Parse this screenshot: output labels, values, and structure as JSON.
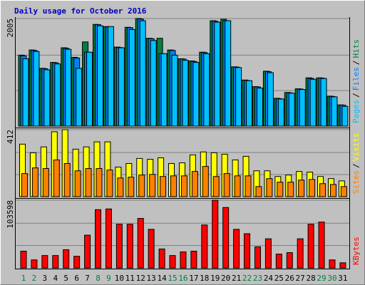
{
  "chart_data": {
    "type": "bar",
    "title": "Daily usage for October 2016",
    "categories": [
      "1",
      "2",
      "3",
      "4",
      "5",
      "6",
      "7",
      "8",
      "9",
      "10",
      "11",
      "12",
      "13",
      "14",
      "15",
      "16",
      "17",
      "18",
      "19",
      "20",
      "21",
      "22",
      "23",
      "24",
      "25",
      "26",
      "27",
      "28",
      "29",
      "30",
      "31"
    ],
    "category_colors": [
      "#008040",
      "#008040",
      "#000000",
      "#000000",
      "#000000",
      "#000000",
      "#000000",
      "#008040",
      "#008040",
      "#000000",
      "#000000",
      "#000000",
      "#000000",
      "#000000",
      "#008040",
      "#008040",
      "#000000",
      "#000000",
      "#000000",
      "#000000",
      "#000000",
      "#008040",
      "#008040",
      "#000000",
      "#000000",
      "#000000",
      "#000000",
      "#000000",
      "#008040",
      "#008040",
      "#000000"
    ],
    "separator": "/",
    "panels": [
      {
        "ylim": [
          0,
          2005
        ],
        "yticks": [
          2005
        ],
        "series": [
          {
            "name": "Hits",
            "color": "#008040",
            "values": [
              1323,
              1419,
              1077,
              1187,
              1460,
              1282,
              1569,
              1896,
              1855,
              1473,
              1842,
              2005,
              1637,
              1637,
              1419,
              1255,
              1214,
              1378,
              1964,
              1991,
              1105,
              859,
              736,
              1023,
              518,
              627,
              696,
              900,
              900,
              559,
              396
            ]
          },
          {
            "name": "Files",
            "color": "#0080ff",
            "values": [
              1310,
              1410,
              1070,
              1180,
              1450,
              1270,
              1378,
              1890,
              1850,
              1465,
              1835,
              1995,
              1630,
              1350,
              1410,
              1250,
              1205,
              1370,
              1955,
              1964,
              1100,
              850,
              730,
              1015,
              512,
              620,
              690,
              890,
              895,
              552,
              390
            ]
          },
          {
            "name": "Pages",
            "color": "#00c0ff",
            "values": [
              1255,
              1391,
              1050,
              1159,
              1432,
              1077,
              1378,
              1869,
              1855,
              1460,
              1800,
              1964,
              1596,
              1350,
              1323,
              1228,
              1187,
              1350,
              1937,
              1964,
              1091,
              846,
              709,
              996,
              505,
              614,
              682,
              873,
              887,
              546,
              368
            ]
          }
        ],
        "label_order": [
          2,
          1,
          0
        ]
      },
      {
        "ylim": [
          0,
          412
        ],
        "yticks": [
          412
        ],
        "series": [
          {
            "name": "Visits",
            "color": "#ffff00",
            "values": [
              323,
              270,
              306,
              399,
              412,
              292,
              306,
              337,
              337,
              182,
              204,
              235,
              230,
              239,
              204,
              208,
              257,
              275,
              270,
              261,
              226,
              248,
              159,
              159,
              124,
              133,
              155,
              151,
              124,
              111,
              97
            ]
          },
          {
            "name": "Sites",
            "color": "#ff8000",
            "values": [
              142,
              177,
              173,
              226,
              204,
              159,
              173,
              173,
              164,
              115,
              120,
              133,
              137,
              124,
              128,
              128,
              155,
              186,
              124,
              142,
              128,
              128,
              62,
              111,
              89,
              89,
              102,
              106,
              80,
              75,
              62
            ]
          }
        ],
        "label_order": [
          1,
          0
        ]
      },
      {
        "ylim": [
          0,
          103598
        ],
        "yticks": [
          103598
        ],
        "series": [
          {
            "name": "KBytes",
            "color": "#ff0000",
            "values": [
              25622,
              12254,
              18938,
              18938,
              27850,
              17824,
              50130,
              89120,
              90234,
              66840,
              66840,
              75752,
              59042,
              28964,
              18938,
              24508,
              25622,
              65726,
              103598,
              92462,
              59042,
              52358,
              32306,
              44560,
              21166,
              23394,
              44560,
              66840,
              70182,
              12254,
              7798
            ]
          }
        ],
        "label_order": [
          0
        ]
      }
    ]
  }
}
